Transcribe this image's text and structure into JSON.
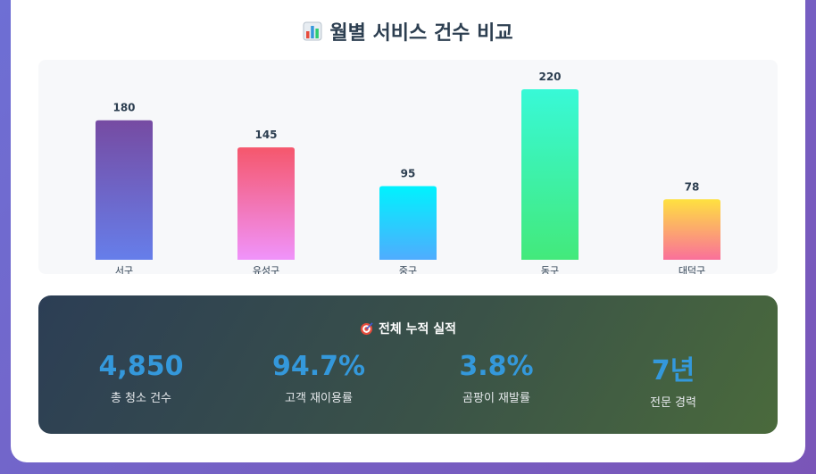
{
  "title": "월별 서비스 건수 비교",
  "chart_data": {
    "type": "bar",
    "categories": [
      "서구",
      "유성구",
      "중구",
      "동구",
      "대덕구"
    ],
    "values": [
      180,
      145,
      95,
      220,
      78
    ],
    "bar_gradients": [
      [
        "#764ba2",
        "#667eea"
      ],
      [
        "#f5576c",
        "#f093fb"
      ],
      [
        "#00f2fe",
        "#4facfe"
      ],
      [
        "#38f9d7",
        "#43e97b"
      ],
      [
        "#fee140",
        "#fa709a"
      ]
    ],
    "ylim": [
      0,
      220
    ],
    "grid": false
  },
  "stats": {
    "title": "전체 누적 실적",
    "icon": "target-dart-icon",
    "items": [
      {
        "value": "4,850",
        "label": "총 청소 건수"
      },
      {
        "value": "94.7%",
        "label": "고객 재이용률"
      },
      {
        "value": "3.8%",
        "label": "곰팡이 재발률"
      },
      {
        "value": "7년",
        "label": "전문 경력"
      }
    ]
  }
}
